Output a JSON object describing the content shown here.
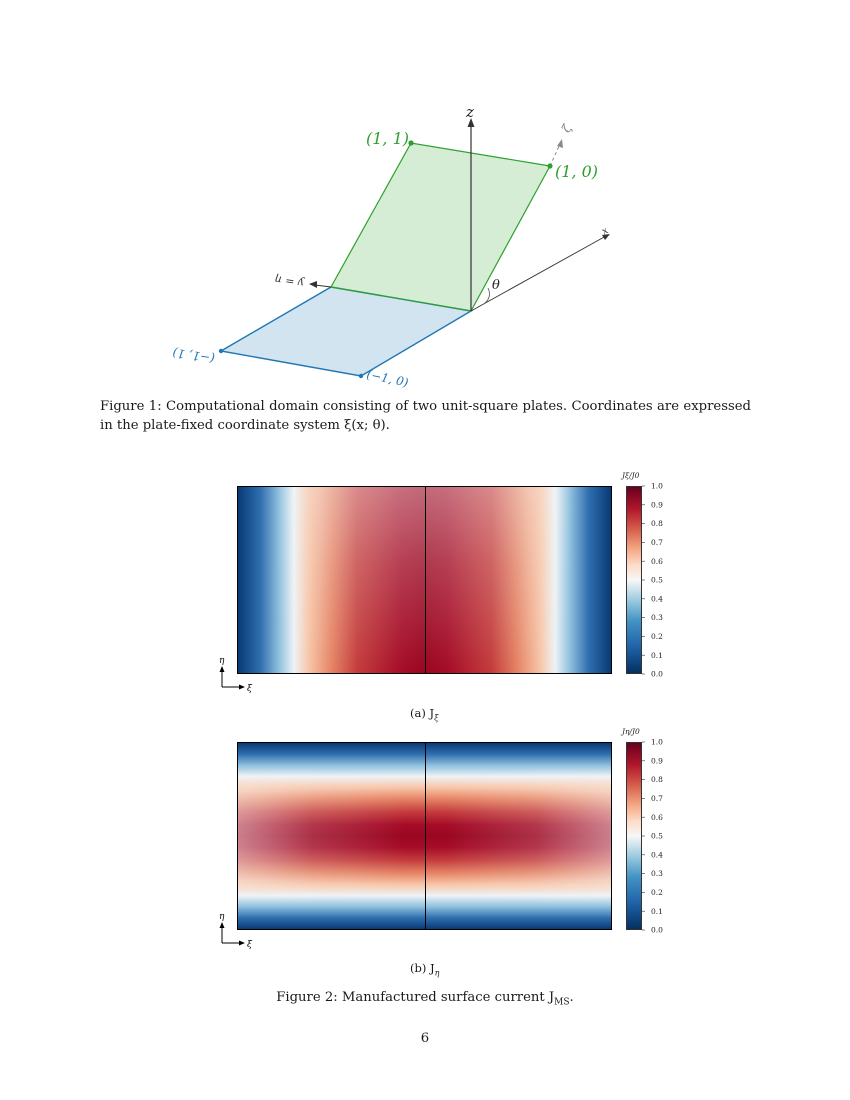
{
  "figure1": {
    "labels": {
      "z_axis": "z",
      "zeta_axis": "ζ",
      "x_axis": "x",
      "y_eta_axis": "y = η",
      "theta": "θ",
      "pt_11": "(1, 1)",
      "pt_10": "(1, 0)",
      "pt_m11": "(−1, 1)",
      "pt_m10": "(−1, 0)"
    },
    "colors": {
      "green_plate": "#2ca02c",
      "blue_plate": "#1f77b4"
    },
    "caption_prefix": "Figure 1:",
    "caption_body": "Computational domain consisting of two unit-square plates. Coordinates are expressed in the plate-fixed coordinate system ξ(x; θ)."
  },
  "figure2": {
    "caption": "Figure 2: Manufactured surface current J",
    "caption_sub": "MS",
    "caption_end": ".",
    "colormap": "RdBu_r",
    "panels": [
      {
        "sub_caption": "(a) J",
        "sub_caption_sub": "ξ",
        "colorbar_label": "Jξ/J0",
        "colorbar_ticks": [
          "1.0",
          "0.9",
          "0.8",
          "0.7",
          "0.6",
          "0.5",
          "0.4",
          "0.3",
          "0.2",
          "0.1",
          "0.0"
        ],
        "axis_eta": "η",
        "axis_xi": "ξ"
      },
      {
        "sub_caption": "(b) J",
        "sub_caption_sub": "η",
        "colorbar_label": "Jη/J0",
        "colorbar_ticks": [
          "1.0",
          "0.9",
          "0.8",
          "0.7",
          "0.6",
          "0.5",
          "0.4",
          "0.3",
          "0.2",
          "0.1",
          "0.0"
        ],
        "axis_eta": "η",
        "axis_xi": "ξ"
      }
    ]
  },
  "page_number": "6"
}
